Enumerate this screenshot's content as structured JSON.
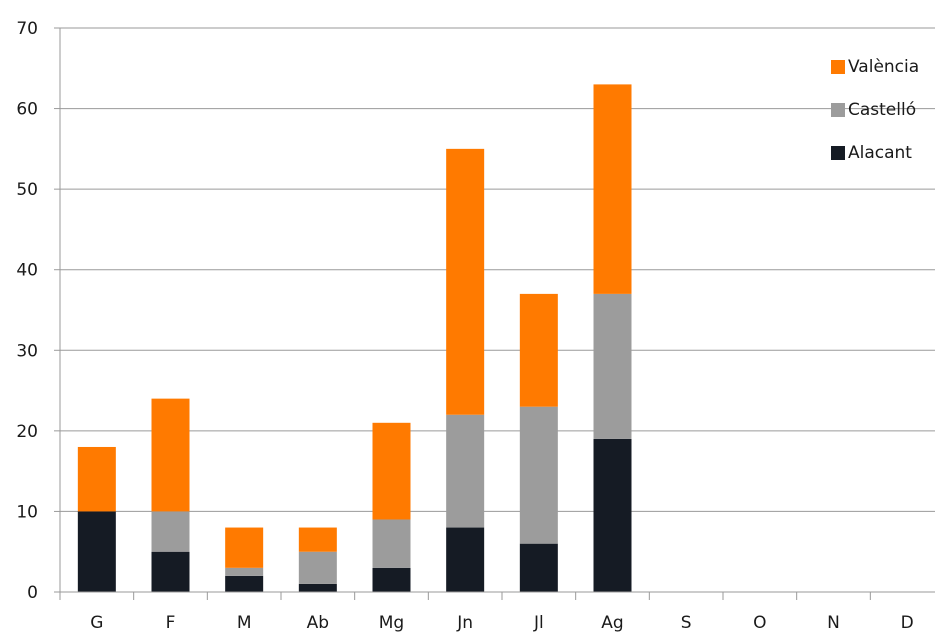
{
  "chart_data": {
    "type": "bar",
    "stacked": true,
    "categories": [
      "G",
      "F",
      "M",
      "Ab",
      "Mg",
      "Jn",
      "Jl",
      "Ag",
      "S",
      "O",
      "N",
      "D"
    ],
    "series": [
      {
        "name": "Alacant",
        "color": "#151b24",
        "values": [
          10,
          5,
          2,
          1,
          3,
          8,
          6,
          19,
          0,
          0,
          0,
          0
        ]
      },
      {
        "name": "Castelló",
        "color": "#9c9c9c",
        "values": [
          0,
          5,
          1,
          4,
          6,
          14,
          17,
          18,
          0,
          0,
          0,
          0
        ]
      },
      {
        "name": "València",
        "color": "#ff7a00",
        "values": [
          8,
          14,
          5,
          3,
          12,
          33,
          14,
          26,
          0,
          0,
          0,
          0
        ]
      }
    ],
    "ylim": [
      0,
      70
    ],
    "yticks": [
      0,
      10,
      20,
      30,
      40,
      50,
      60,
      70
    ],
    "grid": true,
    "legend_position": "top-right",
    "legend_order": [
      "València",
      "Castelló",
      "Alacant"
    ],
    "title": "",
    "xlabel": "",
    "ylabel": ""
  }
}
